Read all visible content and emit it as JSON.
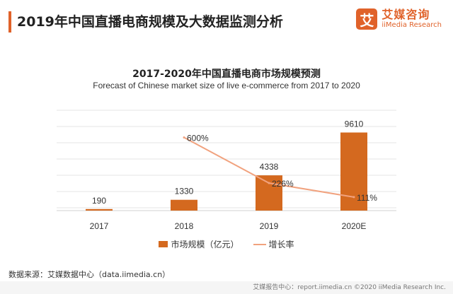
{
  "header": {
    "title": "2019年中国直播电商规模及大数据监测分析"
  },
  "brand": {
    "logo_char": "艾",
    "name_cn": "艾媒咨询",
    "name_en": "iiMedia Research",
    "color": "#e0622a"
  },
  "chart_data": {
    "type": "bar",
    "title": "2017-2020年中国直播电商市场规模预测",
    "subtitle": "Forecast of Chinese market size of live e-commerce from 2017 to 2020",
    "categories": [
      "2017",
      "2018",
      "2019",
      "2020E"
    ],
    "series": [
      {
        "name": "市场规模（亿元）",
        "kind": "bar",
        "values": [
          190,
          1330,
          4338,
          9610
        ],
        "labels": [
          "190",
          "1330",
          "4338",
          "9610"
        ],
        "color": "#d4691f"
      },
      {
        "name": "增长率",
        "kind": "line",
        "values": [
          null,
          600,
          226,
          111
        ],
        "labels": [
          "",
          "600%",
          "226%",
          "111%"
        ],
        "color": "#f1a27e"
      }
    ],
    "ylim": [
      0,
      12000
    ],
    "y2lim": [
      0,
      800
    ],
    "grid": true,
    "legend": "bottom"
  },
  "legend": {
    "bar_label": "市场规模（亿元）",
    "line_label": "增长率"
  },
  "source": "数据来源：艾媒数据中心（data.iimedia.cn）",
  "footer": "艾媒报告中心：report.iimedia.cn   ©2020  iiMedia Research  Inc."
}
